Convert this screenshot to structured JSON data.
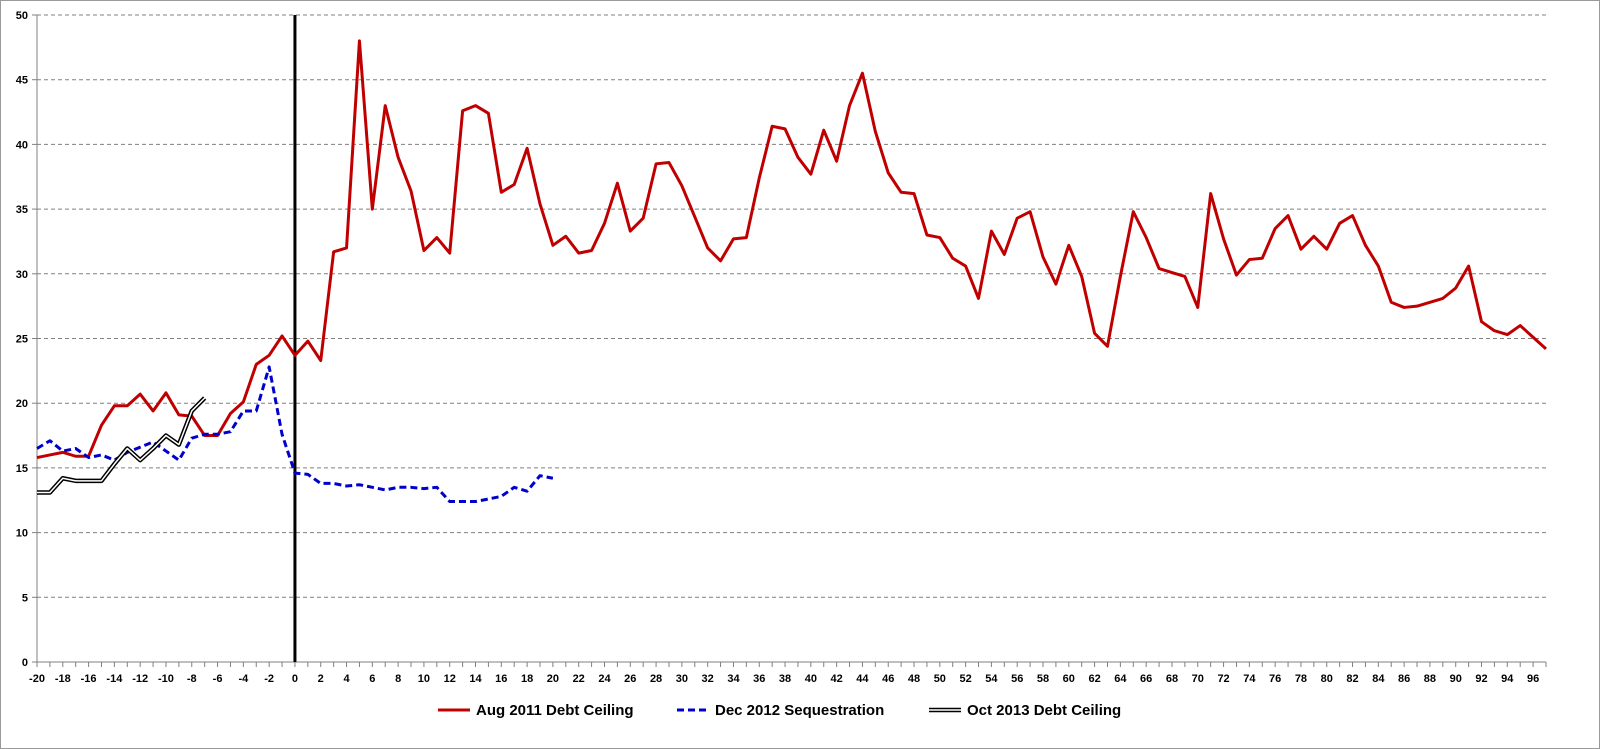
{
  "chart_data": {
    "type": "line",
    "title": "",
    "xlabel": "",
    "ylabel": "",
    "xlim": [
      -20,
      97
    ],
    "ylim": [
      0,
      50
    ],
    "x_ticks": [
      -20,
      -18,
      -16,
      -14,
      -12,
      -10,
      -8,
      -6,
      -4,
      -2,
      0,
      2,
      4,
      6,
      8,
      10,
      12,
      14,
      16,
      18,
      20,
      22,
      24,
      26,
      28,
      30,
      32,
      34,
      36,
      38,
      40,
      42,
      44,
      46,
      48,
      50,
      52,
      54,
      56,
      58,
      60,
      62,
      64,
      66,
      68,
      70,
      72,
      74,
      76,
      78,
      80,
      82,
      84,
      86,
      88,
      90,
      92,
      94,
      96
    ],
    "y_ticks": [
      0,
      5,
      10,
      15,
      20,
      25,
      30,
      35,
      40,
      45,
      50
    ],
    "grid": "horizontal dashed",
    "vertical_marker_x": 0,
    "legend_position": "bottom",
    "series": [
      {
        "name": "Aug 2011 Debt Ceiling",
        "color": "#c00000",
        "style": "solid",
        "x": [
          -20,
          -19,
          -18,
          -17,
          -16,
          -15,
          -14,
          -13,
          -12,
          -11,
          -10,
          -9,
          -8,
          -7,
          -6,
          -5,
          -4,
          -3,
          -2,
          -1,
          0,
          1,
          2,
          3,
          4,
          5,
          6,
          7,
          8,
          9,
          10,
          11,
          12,
          13,
          14,
          15,
          16,
          17,
          18,
          19,
          20,
          21,
          22,
          23,
          24,
          25,
          26,
          27,
          28,
          29,
          30,
          31,
          32,
          33,
          34,
          35,
          36,
          37,
          38,
          39,
          40,
          41,
          42,
          43,
          44,
          45,
          46,
          47,
          48,
          49,
          50,
          51,
          52,
          53,
          54,
          55,
          56,
          57,
          58,
          59,
          60,
          61,
          62,
          63,
          64,
          65,
          66,
          67,
          68,
          69,
          70,
          71,
          72,
          73,
          74,
          75,
          76,
          77,
          78,
          79,
          80,
          81,
          82,
          83,
          84,
          85,
          86,
          87,
          88,
          89,
          90,
          91,
          92,
          93,
          94,
          95,
          96,
          97
        ],
        "values": [
          15.8,
          16.0,
          16.2,
          15.9,
          15.9,
          18.3,
          19.8,
          19.8,
          20.7,
          19.4,
          20.8,
          19.1,
          19.0,
          17.5,
          17.5,
          19.2,
          20.1,
          23.0,
          23.7,
          25.2,
          23.7,
          24.8,
          23.3,
          31.7,
          32.0,
          48.0,
          35.0,
          43.0,
          39.0,
          36.4,
          31.8,
          32.8,
          31.6,
          42.6,
          43.0,
          42.4,
          36.3,
          36.9,
          39.7,
          35.4,
          32.2,
          32.9,
          31.6,
          31.8,
          33.9,
          37.0,
          33.3,
          34.3,
          38.5,
          38.6,
          36.8,
          34.4,
          32.0,
          31.0,
          32.7,
          32.8,
          37.4,
          41.4,
          41.2,
          39.0,
          37.7,
          41.1,
          38.7,
          43.0,
          45.5,
          41.0,
          37.8,
          36.3,
          36.2,
          33.0,
          32.8,
          31.2,
          30.6,
          28.1,
          33.3,
          31.5,
          34.3,
          34.8,
          31.3,
          29.2,
          32.2,
          29.8,
          25.4,
          24.4,
          29.8,
          34.8,
          32.8,
          30.4,
          30.1,
          29.8,
          27.4,
          36.2,
          32.7,
          29.9,
          31.1,
          31.2,
          33.5,
          34.5,
          31.9,
          32.9,
          31.9,
          33.9,
          34.5,
          32.2,
          30.6,
          27.8,
          27.4,
          27.5,
          27.8,
          28.1,
          28.9,
          30.6,
          26.3,
          25.6,
          25.3,
          26.0,
          25.1,
          24.2
        ]
      },
      {
        "name": "Dec 2012 Sequestration",
        "color": "#0000cc",
        "style": "dashed",
        "x": [
          -20,
          -19,
          -18,
          -17,
          -16,
          -15,
          -14,
          -13,
          -12,
          -11,
          -10,
          -9,
          -8,
          -7,
          -6,
          -5,
          -4,
          -3,
          -2,
          -1,
          0,
          1,
          2,
          3,
          4,
          5,
          6,
          7,
          8,
          9,
          10,
          11,
          12,
          13,
          14,
          15,
          16,
          17,
          18,
          19,
          20
        ],
        "values": [
          16.5,
          17.1,
          16.3,
          16.5,
          15.8,
          16.0,
          15.6,
          16.2,
          16.6,
          17.0,
          16.3,
          15.6,
          17.3,
          17.6,
          17.6,
          17.8,
          19.4,
          19.4,
          22.8,
          17.6,
          14.6,
          14.5,
          13.8,
          13.8,
          13.6,
          13.7,
          13.5,
          13.3,
          13.5,
          13.5,
          13.4,
          13.5,
          12.4,
          12.4,
          12.4,
          12.6,
          12.8,
          13.5,
          13.2,
          14.4,
          14.2
        ]
      },
      {
        "name": "Oct 2013 Debt Ceiling",
        "color": "#000000",
        "style": "double",
        "x": [
          -20,
          -19,
          -18,
          -17,
          -16,
          -15,
          -14,
          -13,
          -12,
          -11,
          -10,
          -9,
          -8,
          -7
        ],
        "values": [
          13.1,
          13.1,
          14.2,
          14.0,
          14.0,
          14.0,
          15.3,
          16.5,
          15.6,
          16.5,
          17.5,
          16.8,
          19.4,
          20.4
        ]
      }
    ]
  }
}
